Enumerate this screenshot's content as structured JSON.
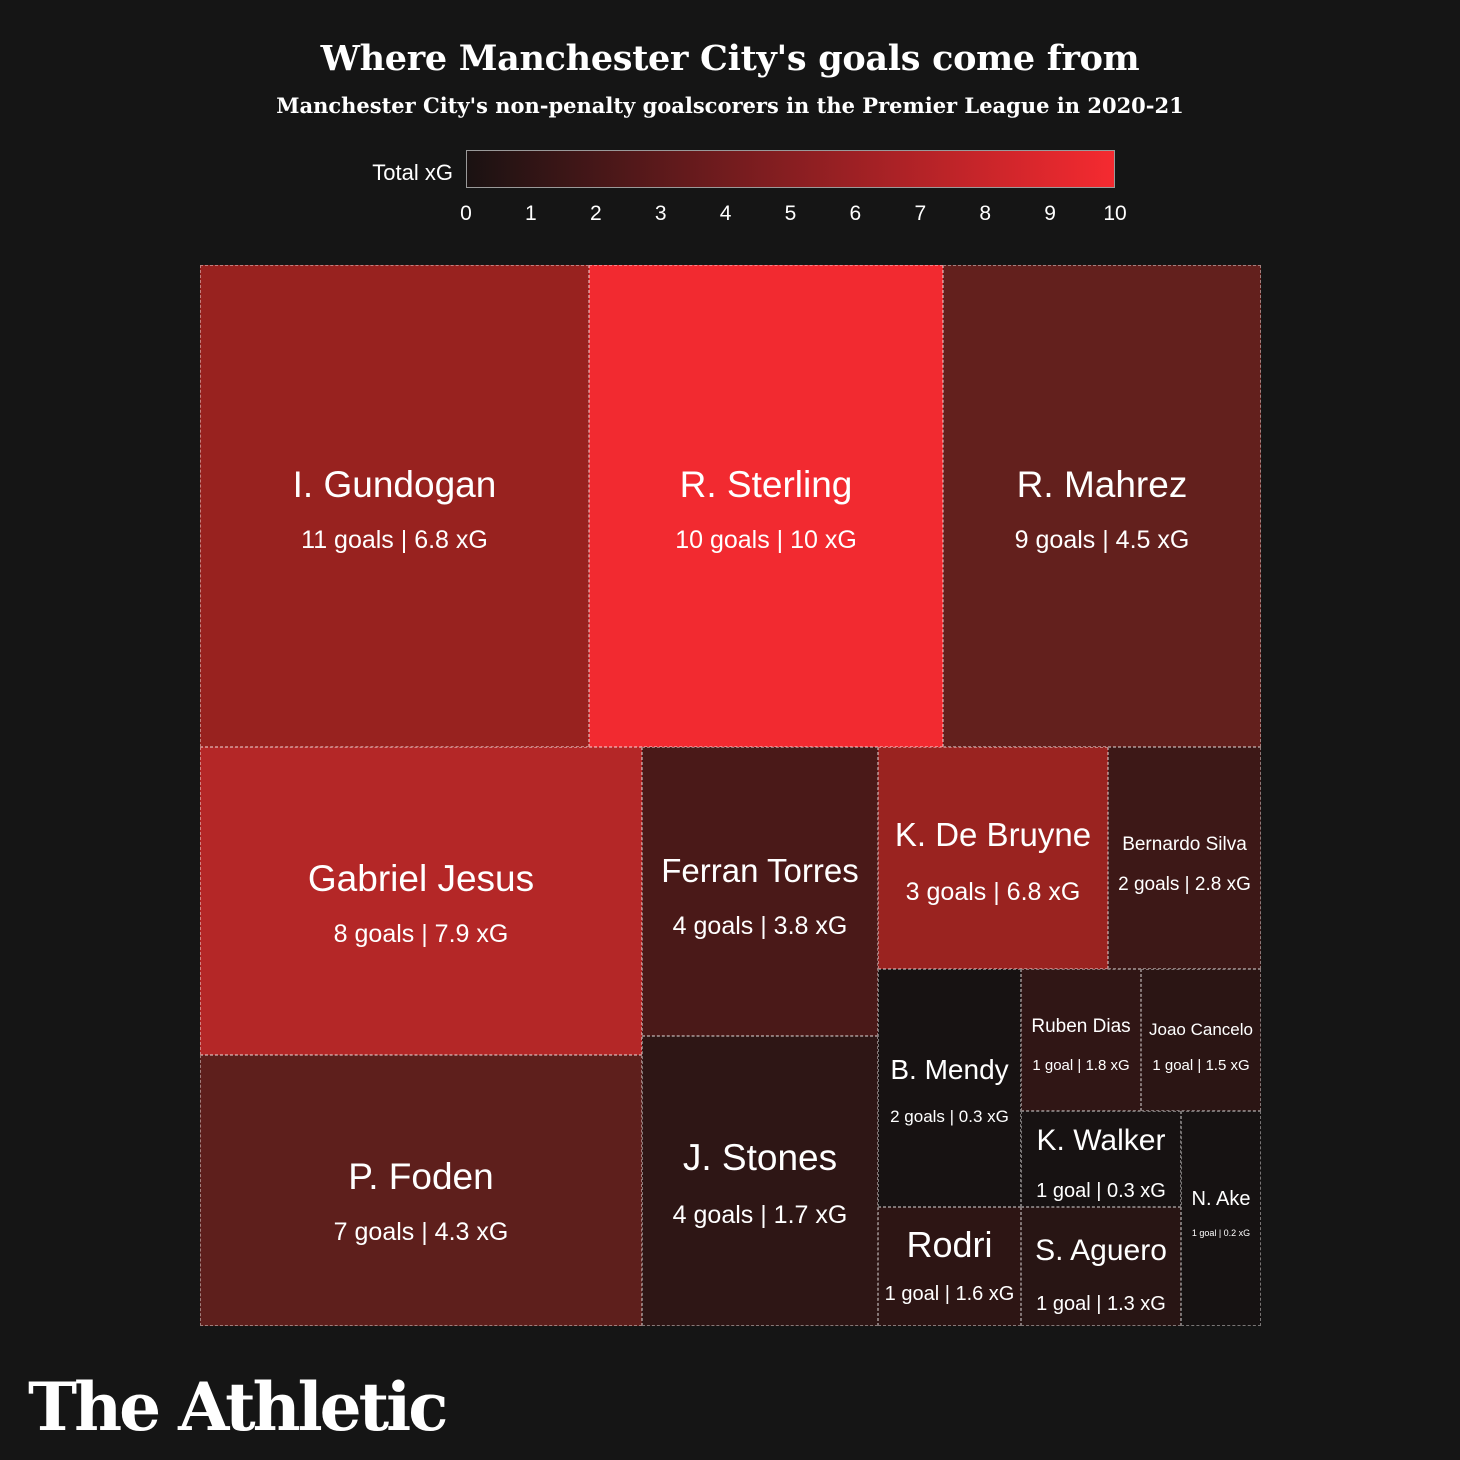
{
  "header": {
    "title": "Where Manchester City's goals come from",
    "subtitle": "Manchester City's non-penalty goalscorers in the Premier League in 2020-21"
  },
  "legend": {
    "label": "Total xG",
    "ticks": [
      "0",
      "1",
      "2",
      "3",
      "4",
      "5",
      "6",
      "7",
      "8",
      "9",
      "10"
    ],
    "min": 0,
    "max": 10,
    "color_low": "#1a1212",
    "color_high": "#f52a30"
  },
  "brand": {
    "name": "The Athletic"
  },
  "chart_data": {
    "type": "treemap",
    "title": "Where Manchester City's goals come from",
    "subtitle": "Manchester City's non-penalty goalscorers in the Premier League in 2020-21",
    "size_metric": "goals",
    "color_metric": "Total xG",
    "color_range": [
      0,
      10
    ],
    "items": [
      {
        "name": "I. Gundogan",
        "goals": 11,
        "xg": 6.8,
        "stat": "11 goals | 6.8 xG",
        "color": "#98221f"
      },
      {
        "name": "R. Sterling",
        "goals": 10,
        "xg": 10,
        "stat": "10 goals | 10 xG",
        "color": "#f22a30"
      },
      {
        "name": "R. Mahrez",
        "goals": 9,
        "xg": 4.5,
        "stat": "9 goals | 4.5 xG",
        "color": "#63201d"
      },
      {
        "name": "Gabriel Jesus",
        "goals": 8,
        "xg": 7.9,
        "stat": "8 goals | 7.9 xG",
        "color": "#b42727"
      },
      {
        "name": "P. Foden",
        "goals": 7,
        "xg": 4.3,
        "stat": "7 goals | 4.3 xG",
        "color": "#5e1f1c"
      },
      {
        "name": "Ferran Torres",
        "goals": 4,
        "xg": 3.8,
        "stat": "4 goals | 3.8 xG",
        "color": "#4a1918"
      },
      {
        "name": "J. Stones",
        "goals": 4,
        "xg": 1.7,
        "stat": "4 goals | 1.7 xG",
        "color": "#2e1615"
      },
      {
        "name": "K. De Bruyne",
        "goals": 3,
        "xg": 6.8,
        "stat": "3 goals | 6.8 xG",
        "color": "#9a2320"
      },
      {
        "name": "Bernardo Silva",
        "goals": 2,
        "xg": 2.8,
        "stat": "2 goals | 2.8 xG",
        "color": "#3d1817"
      },
      {
        "name": "B. Mendy",
        "goals": 2,
        "xg": 0.3,
        "stat": "2 goals | 0.3 xG",
        "color": "#171212"
      },
      {
        "name": "Ruben Dias",
        "goals": 1,
        "xg": 1.8,
        "stat": "1 goal | 1.8 xG",
        "color": "#301615"
      },
      {
        "name": "Joao Cancelo",
        "goals": 1,
        "xg": 1.5,
        "stat": "1 goal | 1.5 xG",
        "color": "#2b1514"
      },
      {
        "name": "Rodri",
        "goals": 1,
        "xg": 1.6,
        "stat": "1 goal | 1.6 xG",
        "color": "#2d1514"
      },
      {
        "name": "K. Walker",
        "goals": 1,
        "xg": 0.3,
        "stat": "1 goal | 0.3 xG",
        "color": "#171212"
      },
      {
        "name": "S. Aguero",
        "goals": 1,
        "xg": 1.3,
        "stat": "1 goal | 1.3 xG",
        "color": "#281514"
      },
      {
        "name": "N. Ake",
        "goals": 1,
        "xg": 0.2,
        "stat": "1 goal | 0.2 xG",
        "color": "#161212"
      }
    ]
  }
}
